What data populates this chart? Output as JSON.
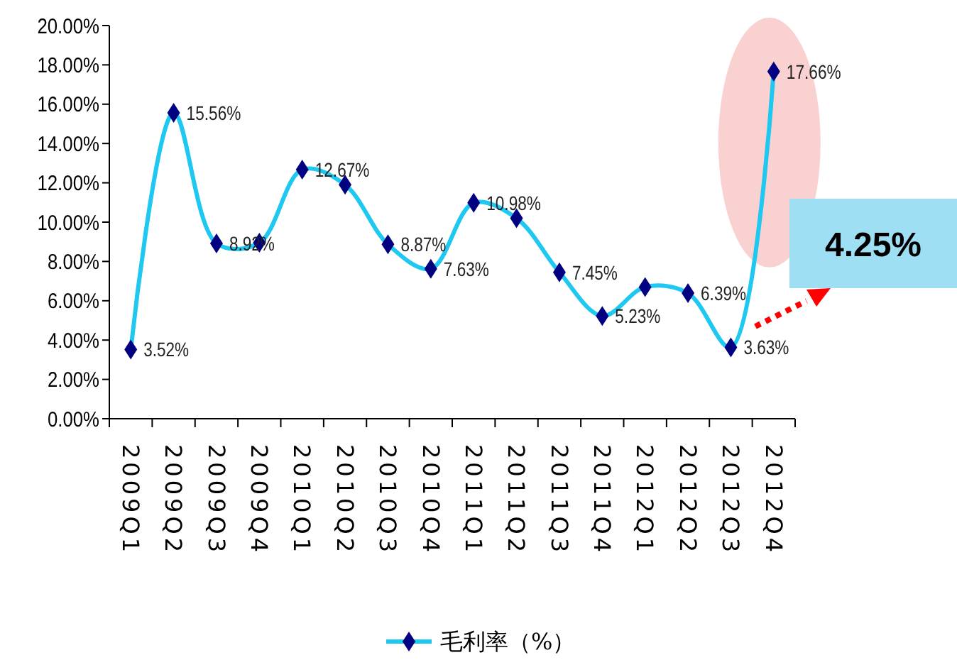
{
  "chart_data": {
    "type": "line",
    "categories": [
      "2009Q1",
      "2009Q2",
      "2009Q3",
      "2009Q4",
      "2010Q1",
      "2010Q2",
      "2010Q3",
      "2010Q4",
      "2011Q1",
      "2011Q2",
      "2011Q3",
      "2011Q4",
      "2012Q1",
      "2012Q2",
      "2012Q3",
      "2012Q4"
    ],
    "series": [
      {
        "name": "毛利率（%）",
        "color": "#1ec8f0",
        "values": [
          3.52,
          15.56,
          8.92,
          8.95,
          12.67,
          11.9,
          8.87,
          7.63,
          10.98,
          10.2,
          7.45,
          5.23,
          6.7,
          6.39,
          3.63,
          17.66
        ],
        "value_labels": [
          "3.52%",
          "15.56%",
          "8.92%",
          null,
          "12.67%",
          null,
          "8.87%",
          "7.63%",
          "10.98%",
          null,
          "7.45%",
          "5.23%",
          null,
          "6.39%",
          "3.63%",
          "17.66%"
        ]
      }
    ],
    "ylim": [
      0,
      20
    ],
    "yticks": [
      {
        "value": 0,
        "label": "0.00%"
      },
      {
        "value": 2,
        "label": "2.00%"
      },
      {
        "value": 4,
        "label": "4.00%"
      },
      {
        "value": 6,
        "label": "6.00%"
      },
      {
        "value": 8,
        "label": "8.00%"
      },
      {
        "value": 10,
        "label": "10.00%"
      },
      {
        "value": 12,
        "label": "12.00%"
      },
      {
        "value": 14,
        "label": "14.00%"
      },
      {
        "value": 16,
        "label": "16.00%"
      },
      {
        "value": 18,
        "label": "18.00%"
      },
      {
        "value": 20,
        "label": "20.00%"
      }
    ],
    "annotations": [
      "4.25%"
    ],
    "grid": false,
    "legend": "bottom",
    "marker": "diamond",
    "line_style": "solid"
  }
}
